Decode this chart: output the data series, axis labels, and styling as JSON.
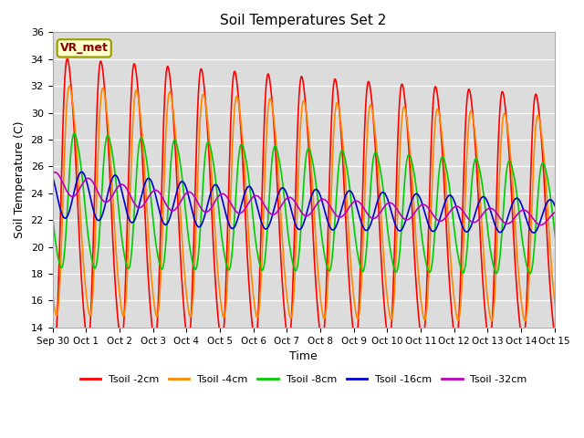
{
  "title": "Soil Temperatures Set 2",
  "xlabel": "Time",
  "ylabel": "Soil Temperature (C)",
  "ylim": [
    14,
    36
  ],
  "yticks": [
    14,
    16,
    18,
    20,
    22,
    24,
    26,
    28,
    30,
    32,
    34,
    36
  ],
  "bg_color": "#dcdcdc",
  "fig_color": "#ffffff",
  "annotation_text": "VR_met",
  "annotation_bg": "#ffffcc",
  "annotation_border": "#999900",
  "series": [
    {
      "label": "Tsoil -2cm",
      "color": "#ff0000",
      "lw": 1.2
    },
    {
      "label": "Tsoil -4cm",
      "color": "#ff8800",
      "lw": 1.2
    },
    {
      "label": "Tsoil -8cm",
      "color": "#00cc00",
      "lw": 1.2
    },
    {
      "label": "Tsoil -16cm",
      "color": "#0000cc",
      "lw": 1.2
    },
    {
      "label": "Tsoil -32cm",
      "color": "#bb00bb",
      "lw": 1.2
    }
  ],
  "xtick_labels": [
    "Sep 30",
    "Oct 1",
    "Oct 2",
    "Oct 3",
    "Oct 4",
    "Oct 5",
    "Oct 6",
    "Oct 7",
    "Oct 8",
    "Oct 9",
    "Oct 10",
    "Oct 11",
    "Oct 12",
    "Oct 13",
    "Oct 14",
    "Oct 15"
  ],
  "xtick_positions": [
    0,
    1,
    2,
    3,
    4,
    5,
    6,
    7,
    8,
    9,
    10,
    11,
    12,
    13,
    14,
    15
  ],
  "n_days": 16,
  "ppd": 48
}
